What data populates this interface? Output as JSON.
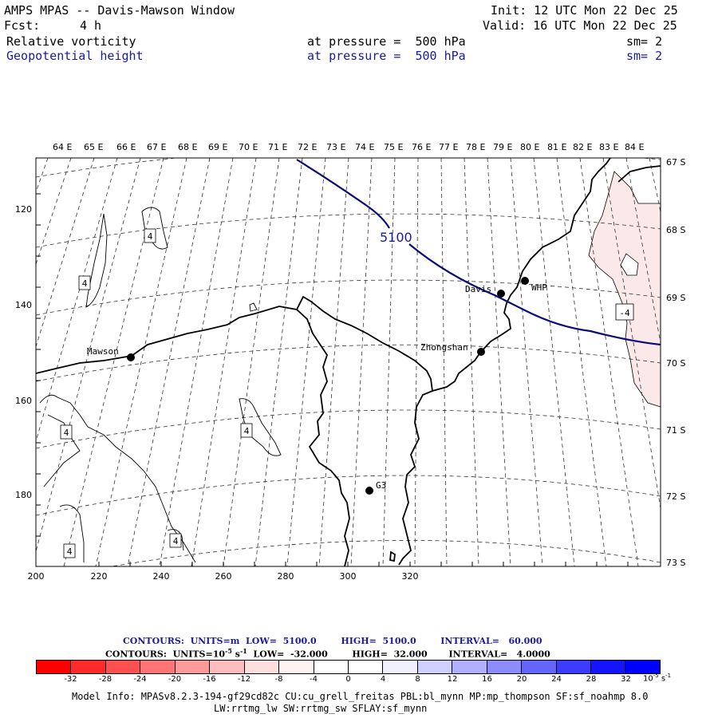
{
  "header": {
    "title": "AMPS MPAS -- Davis-Mawson Window",
    "fcst_label": "Fcst:",
    "fcst_value": "4 h",
    "init": "Init: 12 UTC Mon 22 Dec 25",
    "valid": "Valid: 16 UTC Mon 22 Dec 25",
    "field1": {
      "name": "Relative vorticity",
      "pressure": "at pressure =  500 hPa",
      "sm": "sm= 2"
    },
    "field2": {
      "name": "Geopotential height",
      "pressure": "at pressure =  500 hPa",
      "sm": "sm= 2"
    }
  },
  "map": {
    "top_lon_labels": [
      "64 E",
      "65 E",
      "66 E",
      "67 E",
      "68 E",
      "69 E",
      "70 E",
      "71 E",
      "72 E",
      "73 E",
      "74 E",
      "75 E",
      "76 E",
      "77 E",
      "78 E",
      "79 E",
      "80 E",
      "81 E",
      "82 E",
      "83 E",
      "84 E"
    ],
    "right_lat_labels": [
      "67 S",
      "68 S",
      "69 S",
      "70 S",
      "71 S",
      "72 S",
      "73 S"
    ],
    "x_ticks": [
      "200",
      "220",
      "240",
      "260",
      "280",
      "300",
      "320"
    ],
    "y_ticks": [
      "120",
      "140",
      "160",
      "180"
    ],
    "stations": [
      "Mawson",
      "Davis",
      "WHP",
      "Zhongshan",
      "G3"
    ],
    "height_contour_label": "5100",
    "vort_labels": [
      "4",
      "4",
      "4",
      "4",
      "4",
      "4",
      "-4"
    ]
  },
  "contour_info": {
    "line1": {
      "contours": "CONTOURS:",
      "units": "UNITS=m",
      "low": "LOW=  5100.0",
      "high": "HIGH=  5100.0",
      "interval": "INTERVAL=   60.000"
    },
    "line2": {
      "contours": "CONTOURS:",
      "units": "UNITS=10",
      "units_exp": "-5",
      "units_s": " s",
      "units_sexp": "-1",
      "low": "LOW=  -32.000",
      "high": "HIGH=  32.000",
      "interval": "INTERVAL=   4.0000"
    }
  },
  "colorbar": {
    "colors": [
      "#ff0000",
      "#ff2a2a",
      "#ff5050",
      "#ff7575",
      "#ff9a9a",
      "#ffbdbd",
      "#ffdede",
      "#fff2f2",
      "#ffffff",
      "#ffffff",
      "#f0f0ff",
      "#d0d0ff",
      "#b0b0ff",
      "#8c8cff",
      "#6464ff",
      "#3c3cff",
      "#1414ff",
      "#0000ff"
    ],
    "ticks": [
      "-32",
      "-28",
      "-24",
      "-20",
      "-16",
      "-12",
      "-8",
      "-4",
      "0",
      "4",
      "8",
      "12",
      "16",
      "20",
      "24",
      "28",
      "32"
    ],
    "unit": "10",
    "unit_exp": "-5",
    "unit_s": " s",
    "unit_sexp": "-1"
  },
  "footer": {
    "line1": "Model Info: MPASv8.2.3-194-gf29cd82c CU:cu_grell_freitas PBL:bl_mynn MP:mp_thompson SF:sf_noahmp 8.0",
    "line2": "LW:rrtmg_lw SW:rrtmg_sw SFLAY:sf_mynn"
  }
}
